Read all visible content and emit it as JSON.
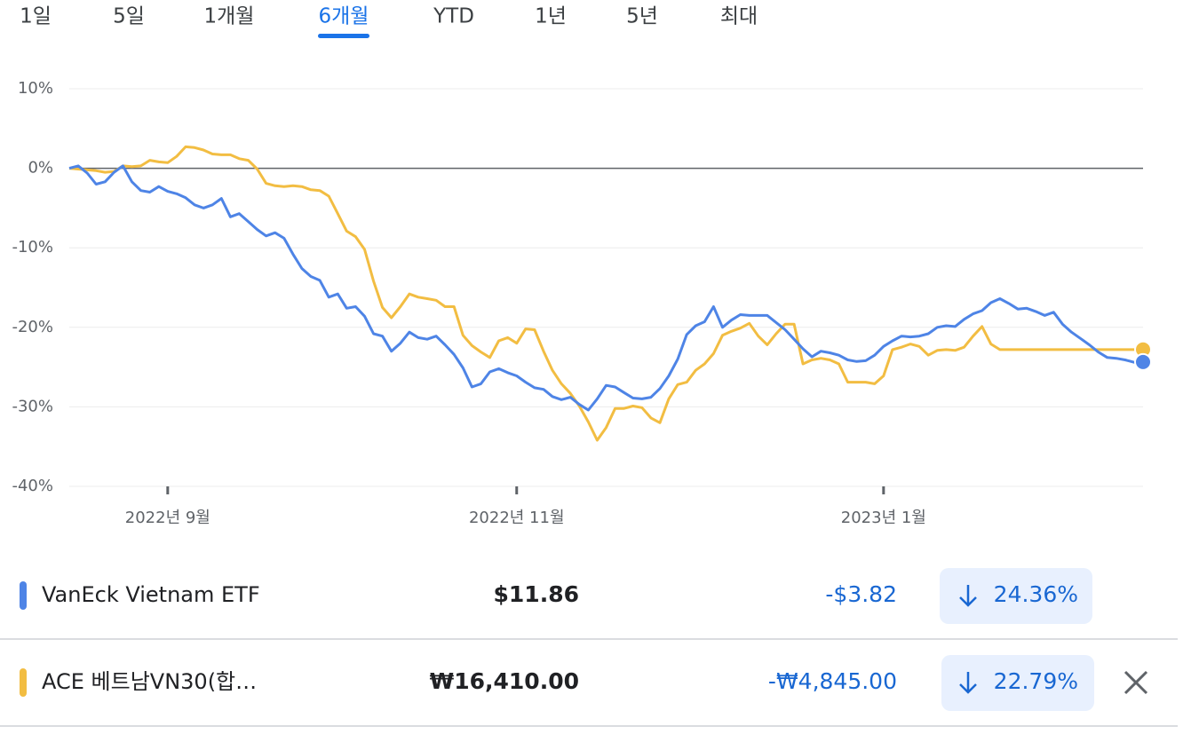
{
  "tabs": {
    "items": [
      "1일",
      "5일",
      "1개월",
      "6개월",
      "YTD",
      "1년",
      "5년",
      "최대"
    ],
    "selected": 3
  },
  "chart_data": {
    "type": "line",
    "categories": [
      null,
      null,
      null,
      null,
      null,
      null,
      null,
      null,
      null,
      null,
      null,
      "2022년 9월",
      null,
      null,
      null,
      null,
      null,
      null,
      null,
      null,
      null,
      null,
      null,
      null,
      null,
      null,
      null,
      null,
      null,
      null,
      null,
      null,
      null,
      null,
      null,
      null,
      null,
      null,
      null,
      null,
      null,
      null,
      null,
      null,
      null,
      null,
      null,
      null,
      null,
      null,
      "2022년 11월",
      null,
      null,
      null,
      null,
      null,
      null,
      null,
      null,
      null,
      null,
      null,
      null,
      null,
      null,
      null,
      null,
      null,
      null,
      null,
      null,
      null,
      null,
      null,
      null,
      null,
      null,
      null,
      null,
      null,
      null,
      null,
      null,
      null,
      null,
      null,
      null,
      null,
      null,
      null,
      null,
      "2023년 1월",
      null,
      null,
      null,
      null,
      null,
      null,
      null,
      null,
      null,
      null,
      null,
      null,
      null,
      null,
      null,
      null,
      null,
      null,
      null,
      null,
      null,
      null,
      null,
      null,
      null,
      null,
      null,
      null,
      null
    ],
    "series": [
      {
        "name": "VanEck Vietnam ETF",
        "color": "#4e84e6",
        "values": [
          0,
          0.3,
          -0.6,
          -2.0,
          -1.7,
          -0.5,
          0.3,
          -1.7,
          -2.8,
          -3.0,
          -2.3,
          -2.9,
          -3.2,
          -3.7,
          -4.6,
          -5.0,
          -4.6,
          -3.8,
          -6.1,
          -5.7,
          -6.7,
          -7.7,
          -8.5,
          -8.1,
          -8.8,
          -10.8,
          -12.6,
          -13.6,
          -14.1,
          -16.2,
          -15.8,
          -17.6,
          -17.4,
          -18.6,
          -20.8,
          -21.1,
          -23.0,
          -22.0,
          -20.6,
          -21.3,
          -21.5,
          -21.1,
          -22.2,
          -23.4,
          -25.1,
          -27.5,
          -27.1,
          -25.6,
          -25.2,
          -25.7,
          -26.1,
          -26.9,
          -27.6,
          -27.8,
          -28.7,
          -29.1,
          -28.8,
          -29.7,
          -30.4,
          -29.0,
          -27.3,
          -27.5,
          -28.2,
          -28.9,
          -29.0,
          -28.8,
          -27.7,
          -26.1,
          -24.0,
          -20.9,
          -19.8,
          -19.3,
          -17.4,
          -20.0,
          -19.1,
          -18.4,
          -18.5,
          -18.5,
          -18.5,
          -19.4,
          -20.3,
          -21.5,
          -22.7,
          -23.7,
          -23.0,
          -23.2,
          -23.5,
          -24.1,
          -24.3,
          -24.2,
          -23.5,
          -22.4,
          -21.7,
          -21.1,
          -21.2,
          -21.1,
          -20.8,
          -20.0,
          -19.8,
          -19.9,
          -19.0,
          -18.3,
          -17.9,
          -16.9,
          -16.4,
          -17.0,
          -17.7,
          -17.6,
          -18.0,
          -18.5,
          -18.1,
          -19.6,
          -20.6,
          -21.4,
          -22.2,
          -23.1,
          -23.8,
          -23.9,
          -24.1,
          -24.4,
          -24.36
        ]
      },
      {
        "name": "ACE 베트남VN30(합…",
        "color": "#f2bd42",
        "values": [
          0,
          -0.1,
          -0.2,
          -0.3,
          -0.5,
          -0.4,
          0.3,
          0.2,
          0.3,
          1.0,
          0.8,
          0.7,
          1.5,
          2.7,
          2.6,
          2.3,
          1.8,
          1.7,
          1.7,
          1.2,
          1.0,
          -0.1,
          -1.9,
          -2.2,
          -2.3,
          -2.2,
          -2.3,
          -2.7,
          -2.8,
          -3.5,
          -5.7,
          -7.9,
          -8.6,
          -10.2,
          -14.2,
          -17.5,
          -18.8,
          -17.4,
          -15.8,
          -16.2,
          -16.4,
          -16.6,
          -17.4,
          -17.4,
          -21.0,
          -22.3,
          -23.1,
          -23.8,
          -21.7,
          -21.3,
          -22.0,
          -20.2,
          -20.3,
          -23.0,
          -25.4,
          -27.1,
          -28.3,
          -29.9,
          -31.9,
          -34.2,
          -32.6,
          -30.2,
          -30.2,
          -29.9,
          -30.1,
          -31.4,
          -32.0,
          -29.0,
          -27.2,
          -26.9,
          -25.4,
          -24.6,
          -23.3,
          -21.0,
          -20.5,
          -20.1,
          -19.5,
          -21.1,
          -22.2,
          -20.8,
          -19.6,
          -19.6,
          -24.6,
          -24.1,
          -23.9,
          -24.1,
          -24.6,
          -26.9,
          -26.9,
          -26.9,
          -27.1,
          -26.1,
          -22.8,
          -22.5,
          -22.1,
          -22.4,
          -23.5,
          -22.9,
          -22.8,
          -22.9,
          -22.5,
          -21.1,
          -19.9,
          -22.1,
          -22.8,
          -22.8,
          -22.8,
          -22.8,
          -22.8,
          -22.8,
          -22.8,
          -22.8,
          -22.8,
          -22.8,
          -22.8,
          -22.8,
          -22.8,
          -22.8,
          -22.8,
          -22.8,
          -22.79
        ]
      }
    ],
    "ylim": [
      -40,
      10
    ],
    "yticks": [
      {
        "value": 10,
        "label": "10%"
      },
      {
        "value": 0,
        "label": "0%"
      },
      {
        "value": -10,
        "label": "-10%"
      },
      {
        "value": -20,
        "label": "-20%"
      },
      {
        "value": -30,
        "label": "-30%"
      },
      {
        "value": -40,
        "label": "-40%"
      }
    ],
    "grid": true
  },
  "holdings": [
    {
      "price": "$11.86",
      "change": "-$3.82",
      "change_pct": "24.36%"
    },
    {
      "price": "₩16,410.00",
      "change": "-₩4,845.00",
      "change_pct": "22.79%"
    }
  ]
}
